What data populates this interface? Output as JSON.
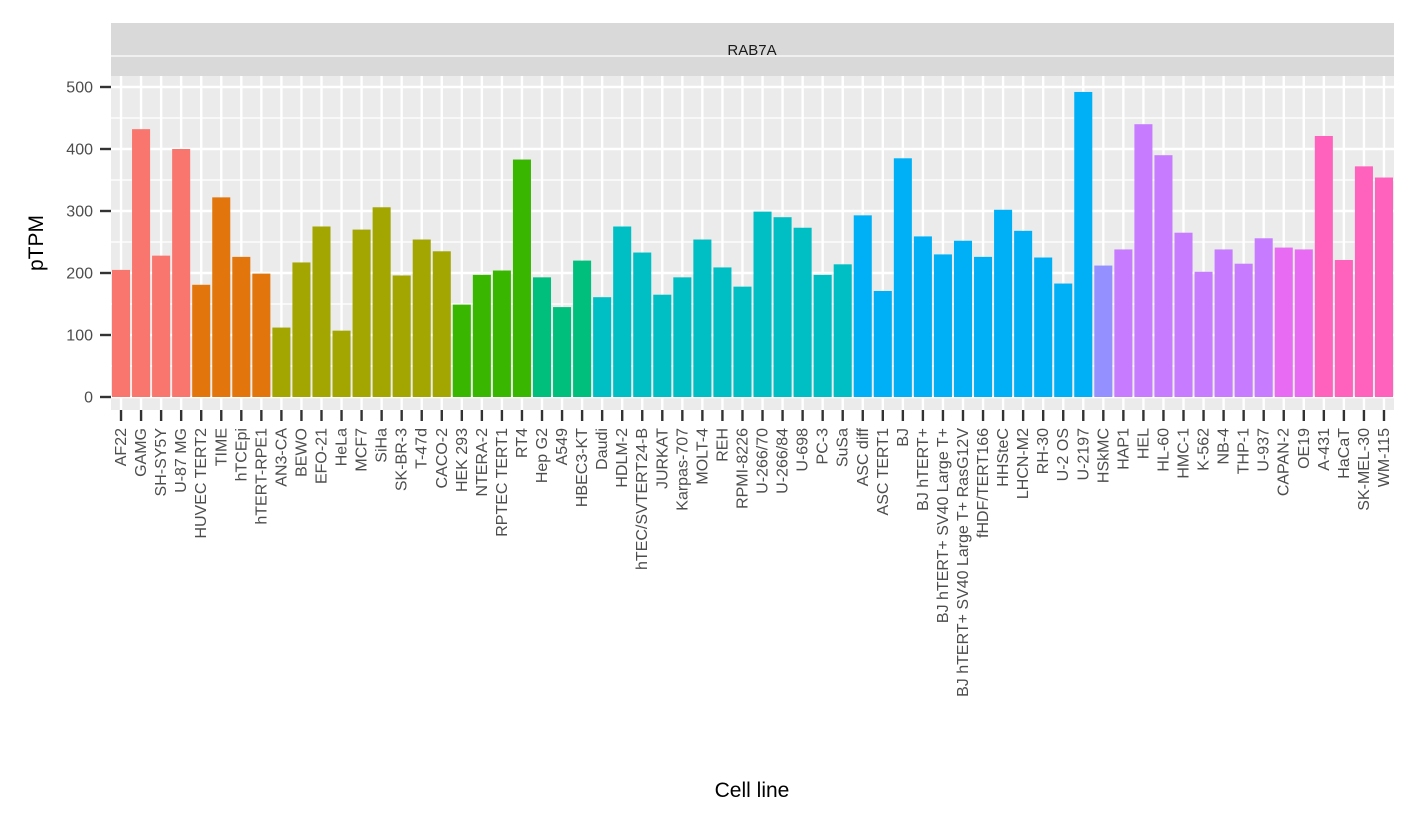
{
  "chart_data": {
    "type": "bar",
    "facet_title": "RAB7A",
    "title": "",
    "xlabel": "Cell line",
    "ylabel": "pTPM",
    "ylim": [
      0,
      590
    ],
    "y_ticks": [
      0,
      100,
      200,
      300,
      400,
      500
    ],
    "grid": true,
    "legend": "none",
    "categories": [
      "AF22",
      "GAMG",
      "SH-SY5Y",
      "U-87 MG",
      "HUVEC TERT2",
      "TIME",
      "hTCEpi",
      "hTERT-RPE1",
      "AN3-CA",
      "BEWO",
      "EFO-21",
      "HeLa",
      "MCF7",
      "SiHa",
      "SK-BR-3",
      "T-47d",
      "CACO-2",
      "HEK 293",
      "NTERA-2",
      "RPTEC TERT1",
      "RT4",
      "Hep G2",
      "A549",
      "HBEC3-KT",
      "Daudi",
      "HDLM-2",
      "hTEC/SVTERT24-B",
      "JURKAT",
      "Karpas-707",
      "MOLT-4",
      "REH",
      "RPMI-8226",
      "U-266/70",
      "U-266/84",
      "U-698",
      "PC-3",
      "SuSa",
      "ASC diff",
      "ASC TERT1",
      "BJ",
      "BJ hTERT+",
      "BJ hTERT+ SV40 Large T+",
      "BJ hTERT+ SV40 Large T+ RasG12V",
      "fHDF/TERT166",
      "HHSteC",
      "LHCN-M2",
      "RH-30",
      "U-2 OS",
      "U-2197",
      "HSkMC",
      "HAP1",
      "HEL",
      "HL-60",
      "HMC-1",
      "K-562",
      "NB-4",
      "THP-1",
      "U-937",
      "CAPAN-2",
      "OE19",
      "A-431",
      "HaCaT",
      "SK-MEL-30",
      "WM-115"
    ],
    "values": [
      205,
      432,
      228,
      400,
      181,
      322,
      226,
      199,
      112,
      217,
      275,
      107,
      270,
      306,
      196,
      254,
      235,
      149,
      197,
      204,
      383,
      193,
      145,
      220,
      161,
      275,
      233,
      165,
      193,
      254,
      209,
      178,
      299,
      290,
      273,
      197,
      214,
      293,
      171,
      385,
      259,
      230,
      252,
      226,
      302,
      268,
      225,
      183,
      492,
      212,
      238,
      440,
      390,
      265,
      202,
      238,
      215,
      256,
      241,
      238,
      421,
      221,
      372,
      354
    ],
    "colors": [
      "#f8766d",
      "#f8766d",
      "#f8766d",
      "#f8766d",
      "#e2760d",
      "#e2760d",
      "#e2760d",
      "#e2760d",
      "#a3a500",
      "#a3a500",
      "#a3a500",
      "#a3a500",
      "#a3a500",
      "#a3a500",
      "#a3a500",
      "#a3a500",
      "#a3a500",
      "#39b600",
      "#39b600",
      "#39b600",
      "#39b600",
      "#00bf7d",
      "#00bf7d",
      "#00bf7d",
      "#00bfc4",
      "#00bfc4",
      "#00bfc4",
      "#00bfc4",
      "#00bfc4",
      "#00bfc4",
      "#00bfc4",
      "#00bfc4",
      "#00bfc4",
      "#00bfc4",
      "#00bfc4",
      "#00bfc4",
      "#00bfc4",
      "#00b0f6",
      "#00b0f6",
      "#00b0f6",
      "#00b0f6",
      "#00b0f6",
      "#00b0f6",
      "#00b0f6",
      "#00b0f6",
      "#00b0f6",
      "#00b0f6",
      "#00b0f6",
      "#00b0f6",
      "#9590ff",
      "#c77cff",
      "#c77cff",
      "#c77cff",
      "#c77cff",
      "#c77cff",
      "#c77cff",
      "#c77cff",
      "#c77cff",
      "#e76bf3",
      "#e76bf3",
      "#ff62bc",
      "#ff62bc",
      "#ff62bc",
      "#ff62bc"
    ],
    "panel_background": "#ebebeb",
    "strip_background": "#d9d9d9",
    "grid_color": "#ffffff"
  }
}
